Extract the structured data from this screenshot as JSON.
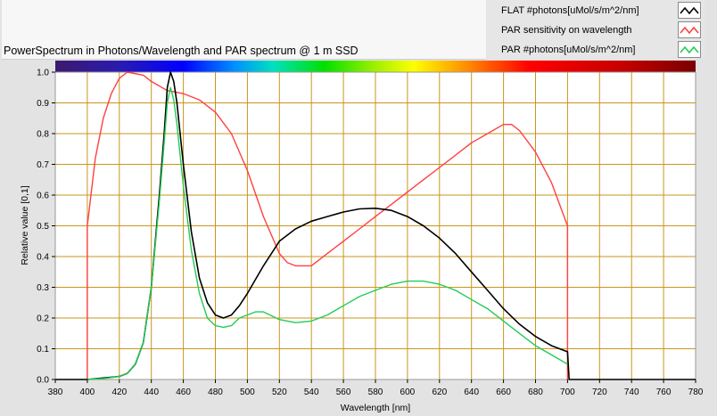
{
  "title": "PowerSpectrum in Photons/Wavelength and PAR spectrum @ 1 m SSD",
  "legend": [
    {
      "label": "FLAT #photons[uMol/s/m^2/nm]",
      "color": "#000000"
    },
    {
      "label": "PAR sensitivity on wavelength",
      "color": "#ff4040"
    },
    {
      "label": "PAR #photons[uMol/s/m^2/nm]",
      "color": "#22cc55"
    }
  ],
  "chart_data": {
    "type": "line",
    "title": "PowerSpectrum in Photons/Wavelength and PAR spectrum @ 1 m SSD",
    "xlabel": "Wavelength [nm]",
    "ylabel": "Relative value [0,1]",
    "xlim": [
      380,
      780
    ],
    "ylim": [
      0,
      1.0
    ],
    "x_ticks": [
      "380",
      "400",
      "420",
      "440",
      "460",
      "480",
      "500",
      "520",
      "540",
      "560",
      "580",
      "600",
      "620",
      "640",
      "660",
      "680",
      "700",
      "720",
      "740",
      "760",
      "780"
    ],
    "y_ticks": [
      "0.0",
      "0.1",
      "0.2",
      "0.3",
      "0.4",
      "0.5",
      "0.6",
      "0.7",
      "0.8",
      "0.9",
      "1.0"
    ],
    "grid": true,
    "color_bar": "visible spectrum gradient",
    "grid_color": "#c8961e",
    "plot_bg": "#ffffff",
    "series": [
      {
        "name": "FLAT #photons[uMol/s/m^2/nm]",
        "color": "#000000",
        "points": [
          [
            380,
            0
          ],
          [
            400,
            0
          ],
          [
            410,
            0.005
          ],
          [
            420,
            0.01
          ],
          [
            425,
            0.02
          ],
          [
            430,
            0.05
          ],
          [
            435,
            0.12
          ],
          [
            440,
            0.3
          ],
          [
            445,
            0.6
          ],
          [
            448,
            0.8
          ],
          [
            450,
            0.95
          ],
          [
            452,
            1.0
          ],
          [
            454,
            0.97
          ],
          [
            456,
            0.9
          ],
          [
            460,
            0.7
          ],
          [
            465,
            0.48
          ],
          [
            470,
            0.33
          ],
          [
            475,
            0.25
          ],
          [
            480,
            0.21
          ],
          [
            485,
            0.2
          ],
          [
            490,
            0.21
          ],
          [
            495,
            0.24
          ],
          [
            500,
            0.28
          ],
          [
            510,
            0.37
          ],
          [
            520,
            0.45
          ],
          [
            530,
            0.49
          ],
          [
            540,
            0.515
          ],
          [
            550,
            0.53
          ],
          [
            560,
            0.545
          ],
          [
            570,
            0.555
          ],
          [
            580,
            0.557
          ],
          [
            590,
            0.55
          ],
          [
            600,
            0.53
          ],
          [
            610,
            0.5
          ],
          [
            620,
            0.46
          ],
          [
            630,
            0.41
          ],
          [
            640,
            0.35
          ],
          [
            650,
            0.29
          ],
          [
            660,
            0.23
          ],
          [
            670,
            0.18
          ],
          [
            680,
            0.14
          ],
          [
            690,
            0.11
          ],
          [
            700,
            0.09
          ],
          [
            701,
            0
          ],
          [
            780,
            0
          ]
        ]
      },
      {
        "name": "PAR sensitivity on wavelength",
        "color": "#ff4040",
        "points": [
          [
            400,
            0
          ],
          [
            400,
            0.5
          ],
          [
            405,
            0.72
          ],
          [
            410,
            0.85
          ],
          [
            415,
            0.93
          ],
          [
            420,
            0.98
          ],
          [
            425,
            1.0
          ],
          [
            435,
            0.99
          ],
          [
            440,
            0.97
          ],
          [
            450,
            0.94
          ],
          [
            460,
            0.93
          ],
          [
            470,
            0.91
          ],
          [
            480,
            0.87
          ],
          [
            490,
            0.8
          ],
          [
            500,
            0.68
          ],
          [
            510,
            0.53
          ],
          [
            520,
            0.41
          ],
          [
            525,
            0.38
          ],
          [
            530,
            0.37
          ],
          [
            540,
            0.37
          ],
          [
            550,
            0.41
          ],
          [
            560,
            0.45
          ],
          [
            570,
            0.49
          ],
          [
            580,
            0.53
          ],
          [
            590,
            0.57
          ],
          [
            600,
            0.61
          ],
          [
            610,
            0.65
          ],
          [
            620,
            0.69
          ],
          [
            630,
            0.73
          ],
          [
            640,
            0.77
          ],
          [
            650,
            0.8
          ],
          [
            660,
            0.83
          ],
          [
            665,
            0.83
          ],
          [
            670,
            0.81
          ],
          [
            680,
            0.74
          ],
          [
            690,
            0.64
          ],
          [
            700,
            0.5
          ],
          [
            700,
            0
          ]
        ]
      },
      {
        "name": "PAR #photons[uMol/s/m^2/nm]",
        "color": "#22cc55",
        "points": [
          [
            400,
            0
          ],
          [
            410,
            0.003
          ],
          [
            420,
            0.01
          ],
          [
            425,
            0.02
          ],
          [
            430,
            0.05
          ],
          [
            435,
            0.12
          ],
          [
            440,
            0.3
          ],
          [
            445,
            0.58
          ],
          [
            448,
            0.77
          ],
          [
            450,
            0.9
          ],
          [
            452,
            0.95
          ],
          [
            454,
            0.91
          ],
          [
            456,
            0.83
          ],
          [
            460,
            0.63
          ],
          [
            465,
            0.42
          ],
          [
            470,
            0.28
          ],
          [
            475,
            0.2
          ],
          [
            480,
            0.175
          ],
          [
            485,
            0.17
          ],
          [
            490,
            0.175
          ],
          [
            495,
            0.2
          ],
          [
            505,
            0.22
          ],
          [
            510,
            0.22
          ],
          [
            520,
            0.195
          ],
          [
            530,
            0.185
          ],
          [
            540,
            0.19
          ],
          [
            550,
            0.21
          ],
          [
            560,
            0.24
          ],
          [
            570,
            0.27
          ],
          [
            580,
            0.29
          ],
          [
            590,
            0.31
          ],
          [
            600,
            0.32
          ],
          [
            610,
            0.32
          ],
          [
            620,
            0.31
          ],
          [
            630,
            0.29
          ],
          [
            640,
            0.26
          ],
          [
            650,
            0.23
          ],
          [
            660,
            0.19
          ],
          [
            670,
            0.15
          ],
          [
            680,
            0.11
          ],
          [
            690,
            0.08
          ],
          [
            700,
            0.05
          ]
        ]
      }
    ]
  }
}
